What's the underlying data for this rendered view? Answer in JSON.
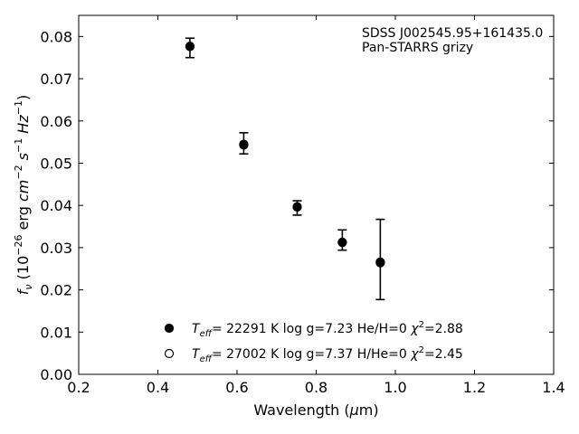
{
  "chart_data": {
    "type": "scatter",
    "xlabel_parts": [
      "Wavelength (",
      "μ",
      "m)"
    ],
    "ylabel_parts": [
      "f",
      "ν",
      " (10",
      "−26",
      " erg ",
      "cm",
      "−2",
      " s",
      "−1",
      " Hz",
      "−1",
      ")"
    ],
    "xlim": [
      0.2,
      1.4
    ],
    "ylim": [
      0.0,
      0.085
    ],
    "xticks": [
      0.2,
      0.4,
      0.6,
      0.8,
      1.0,
      1.2,
      1.4
    ],
    "xtick_labels": [
      "0.2",
      "0.4",
      "0.6",
      "0.8",
      "1.0",
      "1.2",
      "1.4"
    ],
    "yticks": [
      0.0,
      0.01,
      0.02,
      0.03,
      0.04,
      0.05,
      0.06,
      0.07,
      0.08
    ],
    "ytick_labels": [
      "0.00",
      "0.01",
      "0.02",
      "0.03",
      "0.04",
      "0.05",
      "0.06",
      "0.07",
      "0.08"
    ],
    "grid": false,
    "annotation": [
      "SDSS J002545.95+161435.0",
      "Pan-STARRS grizy"
    ],
    "annotation_position": "top-right",
    "observed": {
      "points": [
        {
          "x": 0.481,
          "y": 0.0773,
          "err": 0.0023
        },
        {
          "x": 0.617,
          "y": 0.0547,
          "err": 0.0025
        },
        {
          "x": 0.752,
          "y": 0.0394,
          "err": 0.0017
        },
        {
          "x": 0.866,
          "y": 0.0318,
          "err": 0.0024
        },
        {
          "x": 0.962,
          "y": 0.0272,
          "err": 0.0095
        }
      ]
    },
    "series": [
      {
        "marker": "filled-circle",
        "legend": {
          "teff_value": "= 22291 K",
          "logg": "log g=7.23",
          "comp": "He/H=0",
          "chi": "=2.88"
        },
        "values": [
          {
            "x": 0.481,
            "y": 0.0777
          },
          {
            "x": 0.617,
            "y": 0.0545
          },
          {
            "x": 0.752,
            "y": 0.0397
          },
          {
            "x": 0.866,
            "y": 0.0313
          },
          {
            "x": 0.962,
            "y": 0.0264
          }
        ]
      },
      {
        "marker": "open-circle",
        "legend": {
          "teff_value": "= 27002 K",
          "logg": "log g=7.37",
          "comp": "H/He=0",
          "chi": "=2.45"
        },
        "values": [
          {
            "x": 0.481,
            "y": 0.0776
          },
          {
            "x": 0.617,
            "y": 0.0543
          },
          {
            "x": 0.752,
            "y": 0.0396
          },
          {
            "x": 0.866,
            "y": 0.0312
          },
          {
            "x": 0.962,
            "y": 0.0266
          }
        ]
      }
    ],
    "legend_position": "bottom-left"
  }
}
